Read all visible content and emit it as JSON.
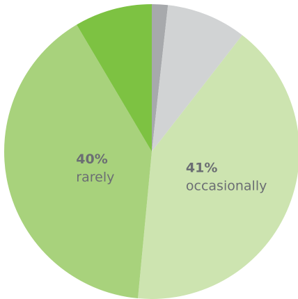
{
  "chart_data": {
    "type": "pie",
    "start": "top",
    "direction": "clockwise",
    "slices": [
      {
        "label": "",
        "value": 1.75,
        "color": "#a7a9ac"
      },
      {
        "label": "",
        "value": 8.75,
        "color": "#d1d3d4"
      },
      {
        "label": "occasionally",
        "value": 41,
        "display_value": "41%",
        "color": "#cde4b0"
      },
      {
        "label": "rarely",
        "value": 40,
        "display_value": "40%",
        "color": "#a8d27c"
      },
      {
        "label": "",
        "value": 8.5,
        "color": "#7dc242"
      }
    ]
  }
}
